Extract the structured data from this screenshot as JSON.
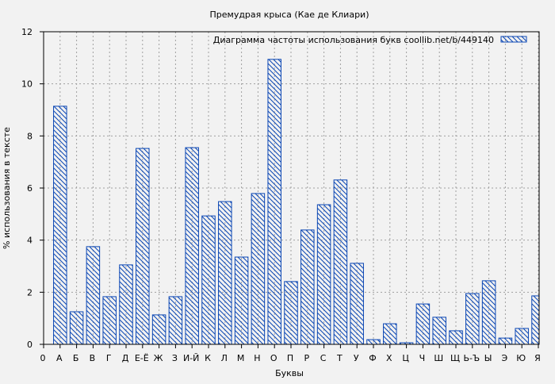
{
  "chart_data": {
    "type": "bar",
    "title": "Премудрая крыса (Кае де Клиари)",
    "xlabel": "Буквы",
    "ylabel": "% использования в тексте",
    "legend": {
      "label": "Диаграмма частоты использования букв  coollib.net/b/449140",
      "placement": "top-right"
    },
    "x_origin_label": "0",
    "categories": [
      "А",
      "Б",
      "В",
      "Г",
      "Д",
      "Е-Ё",
      "Ж",
      "З",
      "И-Й",
      "К",
      "Л",
      "М",
      "Н",
      "О",
      "П",
      "Р",
      "С",
      "Т",
      "У",
      "Ф",
      "Х",
      "Ц",
      "Ч",
      "Ш",
      "Щ",
      "Ь-Ъ",
      "Ы",
      "Э",
      "Ю",
      "Я"
    ],
    "values": [
      9.14,
      1.25,
      3.75,
      1.83,
      3.05,
      7.52,
      1.13,
      1.83,
      7.55,
      4.93,
      5.48,
      3.35,
      5.79,
      10.94,
      2.41,
      4.39,
      5.36,
      6.31,
      3.11,
      0.18,
      0.79,
      0.06,
      1.55,
      1.04,
      0.52,
      1.95,
      2.44,
      0.24,
      0.61,
      1.86
    ],
    "ylim": [
      0,
      12
    ],
    "yticks": [
      0,
      2,
      4,
      6,
      8,
      10,
      12
    ],
    "grid": true,
    "colors": {
      "bar": "#0a46b4",
      "grid": "#a0a0a0"
    }
  }
}
